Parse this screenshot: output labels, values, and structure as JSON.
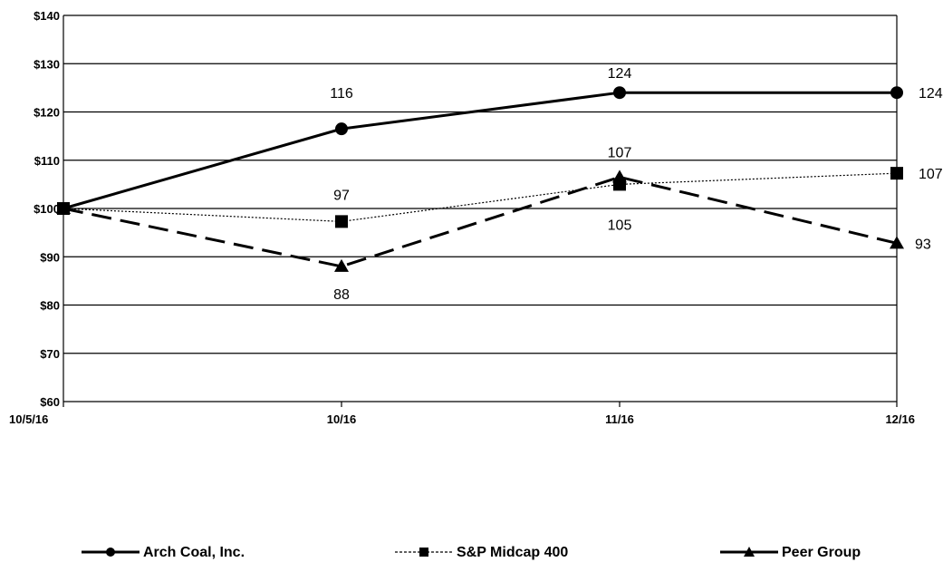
{
  "chart_data": {
    "type": "line",
    "categories": [
      "10/5/16",
      "10/16",
      "11/16",
      "12/16"
    ],
    "ylim": [
      60,
      140
    ],
    "yticks": [
      60,
      70,
      80,
      90,
      100,
      110,
      120,
      130,
      140
    ],
    "ytick_labels": [
      "$60",
      "$70",
      "$80",
      "$90",
      "$100",
      "$110",
      "$120",
      "$130",
      "$140"
    ],
    "grid": true,
    "legend_position": "bottom",
    "series": [
      {
        "name": "Arch Coal, Inc.",
        "values": [
          100,
          116.5,
          124,
          124
        ],
        "marker": "circle",
        "line_style": "solid",
        "color": "#000000",
        "labels": [
          "",
          "116",
          "124",
          "124"
        ]
      },
      {
        "name": "S&P Midcap 400",
        "values": [
          100,
          97.3,
          105,
          107.3
        ],
        "marker": "square",
        "line_style": "dotted",
        "color": "#000000",
        "labels": [
          "",
          "97",
          "105",
          "107"
        ]
      },
      {
        "name": "Peer Group",
        "values": [
          100,
          88,
          106.5,
          92.8
        ],
        "marker": "triangle",
        "line_style": "dashed",
        "color": "#000000",
        "labels": [
          "",
          "88",
          "107",
          "93"
        ]
      }
    ]
  }
}
